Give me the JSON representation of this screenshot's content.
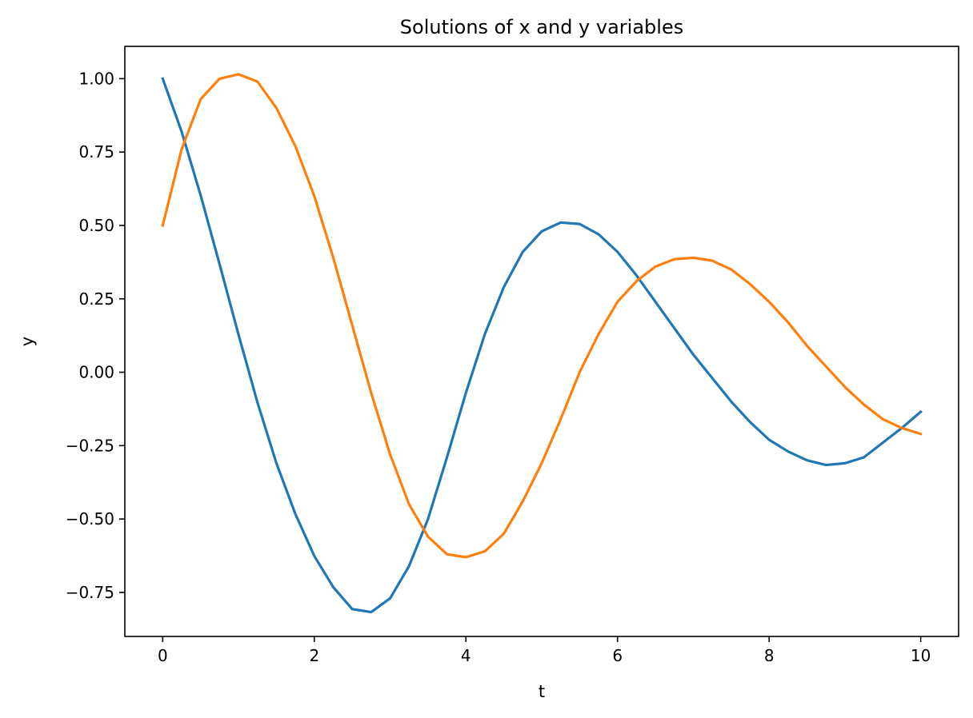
{
  "chart_data": {
    "type": "line",
    "title": "Solutions of x and y variables",
    "xlabel": "t",
    "ylabel": "y",
    "xlim": [
      -0.5,
      10.5
    ],
    "ylim": [
      -0.9,
      1.11
    ],
    "grid": false,
    "legend": "none",
    "xticks": [
      0,
      2,
      4,
      6,
      8,
      10
    ],
    "xtick_labels": [
      "0",
      "2",
      "4",
      "6",
      "8",
      "10"
    ],
    "yticks": [
      1.0,
      0.75,
      0.5,
      0.25,
      0.0,
      -0.25,
      -0.5,
      -0.75
    ],
    "ytick_labels": [
      "1.00",
      "0.75",
      "0.50",
      "0.25",
      "0.00",
      "−0.25",
      "−0.50",
      "−0.75"
    ],
    "series": [
      {
        "color": "#1f77b4",
        "x": [
          0,
          0.25,
          0.5,
          0.75,
          1,
          1.25,
          1.5,
          1.75,
          2,
          2.25,
          2.5,
          2.75,
          3,
          3.25,
          3.5,
          3.75,
          4,
          4.25,
          4.5,
          4.75,
          5,
          5.25,
          5.5,
          5.75,
          6,
          6.25,
          6.5,
          6.75,
          7,
          7.25,
          7.5,
          7.75,
          8,
          8.25,
          8.5,
          8.75,
          9,
          9.25,
          9.5,
          9.75,
          10
        ],
        "y": [
          1.0,
          0.819,
          0.603,
          0.368,
          0.128,
          -0.103,
          -0.31,
          -0.483,
          -0.626,
          -0.732,
          -0.807,
          -0.817,
          -0.77,
          -0.66,
          -0.5,
          -0.29,
          -0.07,
          0.13,
          0.29,
          0.41,
          0.48,
          0.51,
          0.505,
          0.47,
          0.41,
          0.33,
          0.24,
          0.15,
          0.06,
          -0.02,
          -0.1,
          -0.17,
          -0.23,
          -0.27,
          -0.3,
          -0.316,
          -0.31,
          -0.29,
          -0.24,
          -0.19,
          -0.135
        ]
      },
      {
        "color": "#ff7f0e",
        "x": [
          0,
          0.25,
          0.5,
          0.75,
          1,
          1.25,
          1.5,
          1.75,
          2,
          2.25,
          2.5,
          2.75,
          3,
          3.25,
          3.5,
          3.75,
          4,
          4.25,
          4.5,
          4.75,
          5,
          5.25,
          5.5,
          5.75,
          6,
          6.25,
          6.5,
          6.75,
          7,
          7.25,
          7.5,
          7.75,
          8,
          8.25,
          8.5,
          8.75,
          9,
          9.25,
          9.5,
          9.75,
          10
        ],
        "y": [
          0.5,
          0.76,
          0.93,
          1.0,
          1.015,
          0.99,
          0.9,
          0.77,
          0.6,
          0.39,
          0.16,
          -0.07,
          -0.28,
          -0.45,
          -0.56,
          -0.62,
          -0.63,
          -0.61,
          -0.55,
          -0.44,
          -0.31,
          -0.16,
          0.0,
          0.13,
          0.24,
          0.31,
          0.36,
          0.385,
          0.39,
          0.38,
          0.35,
          0.3,
          0.24,
          0.17,
          0.09,
          0.02,
          -0.05,
          -0.11,
          -0.16,
          -0.19,
          -0.21
        ]
      }
    ]
  }
}
